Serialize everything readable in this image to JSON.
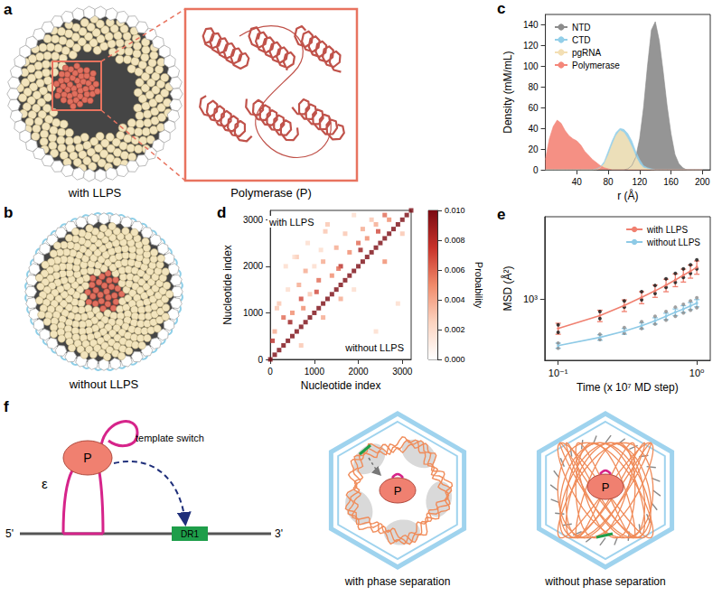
{
  "panels": {
    "a": {
      "label": "a",
      "caption": "with LLPS",
      "inset_title": "Polymerase (P)"
    },
    "b": {
      "label": "b",
      "caption": "without LLPS"
    },
    "f": {
      "label": "f",
      "p_label": "P",
      "epsilon_label": "ε",
      "arrow_label": "template switch",
      "five_prime": "5'",
      "three_prime": "3'",
      "motif_label": "DR1",
      "left_caption": "with phase separation",
      "right_caption": "without phase separation"
    }
  },
  "chart_data": [
    {
      "panel_label": "c",
      "type": "area",
      "xlabel": "r (Å)",
      "ylabel": "Density (mM/mL)",
      "x": [
        0,
        5,
        10,
        15,
        20,
        25,
        30,
        35,
        40,
        45,
        50,
        55,
        60,
        65,
        70,
        75,
        80,
        85,
        90,
        95,
        100,
        105,
        110,
        115,
        120,
        125,
        130,
        135,
        140,
        145,
        150,
        155,
        160,
        165,
        170,
        175,
        180,
        185,
        190,
        195,
        200
      ],
      "series": [
        {
          "name": "NTD",
          "color": "#8c8c8c",
          "values": [
            0,
            0,
            0,
            0,
            0,
            0,
            0,
            0,
            0,
            0,
            0,
            0,
            0,
            0,
            0,
            0,
            0,
            0,
            0,
            0,
            0,
            1,
            4,
            12,
            30,
            60,
            100,
            135,
            143,
            125,
            95,
            62,
            35,
            15,
            6,
            2,
            0,
            0,
            0,
            0,
            0
          ]
        },
        {
          "name": "CTD",
          "color": "#93cfe9",
          "values": [
            0,
            0,
            0,
            0,
            0,
            0,
            0,
            0,
            0,
            0,
            0,
            0,
            0,
            1,
            3,
            8,
            18,
            28,
            36,
            40,
            39,
            35,
            28,
            18,
            10,
            4,
            2,
            1,
            0,
            0,
            0,
            0,
            0,
            0,
            0,
            0,
            0,
            0,
            0,
            0,
            0
          ]
        },
        {
          "name": "pgRNA",
          "color": "#f3dfb4",
          "values": [
            0,
            0,
            0,
            0,
            0,
            0,
            0,
            0,
            0,
            0,
            0,
            0,
            0,
            0,
            2,
            6,
            14,
            24,
            33,
            38,
            36,
            30,
            22,
            13,
            6,
            2,
            1,
            0,
            0,
            0,
            0,
            0,
            0,
            0,
            0,
            0,
            0,
            0,
            0,
            0,
            0
          ]
        },
        {
          "name": "Polymerase",
          "color": "#f4877a",
          "values": [
            10,
            30,
            42,
            48,
            45,
            38,
            33,
            30,
            28,
            24,
            18,
            14,
            10,
            7,
            4,
            2,
            1,
            0,
            0,
            0,
            0,
            0,
            0,
            0,
            0,
            0,
            0,
            0,
            0,
            0,
            0,
            0,
            0,
            0,
            0,
            0,
            0,
            0,
            0,
            0,
            0
          ]
        }
      ],
      "xlim": [
        0,
        210
      ],
      "xticks": [
        40,
        80,
        120,
        160,
        200
      ],
      "ylim": [
        0,
        150
      ],
      "yticks": [
        0,
        20,
        40,
        60,
        80,
        100,
        120,
        140
      ],
      "legend": "top-left",
      "grid": false
    },
    {
      "panel_label": "d",
      "type": "heatmap",
      "xlabel": "Nucleotide index",
      "ylabel": "Nucleotide index",
      "annotations": [
        "with LLPS",
        "without LLPS"
      ],
      "cells": [
        [
          0,
          0,
          0.01
        ],
        [
          100,
          100,
          0.01
        ],
        [
          200,
          200,
          0.01
        ],
        [
          300,
          300,
          0.01
        ],
        [
          400,
          400,
          0.01
        ],
        [
          500,
          500,
          0.01
        ],
        [
          600,
          600,
          0.01
        ],
        [
          700,
          700,
          0.01
        ],
        [
          800,
          800,
          0.01
        ],
        [
          900,
          900,
          0.01
        ],
        [
          1000,
          1000,
          0.01
        ],
        [
          1100,
          1100,
          0.01
        ],
        [
          1200,
          1200,
          0.01
        ],
        [
          1300,
          1300,
          0.01
        ],
        [
          1400,
          1400,
          0.01
        ],
        [
          1500,
          1500,
          0.01
        ],
        [
          1600,
          1600,
          0.01
        ],
        [
          1700,
          1700,
          0.01
        ],
        [
          1800,
          1800,
          0.01
        ],
        [
          1900,
          1900,
          0.01
        ],
        [
          2000,
          2000,
          0.01
        ],
        [
          2100,
          2100,
          0.01
        ],
        [
          2200,
          2200,
          0.01
        ],
        [
          2300,
          2300,
          0.01
        ],
        [
          2400,
          2400,
          0.01
        ],
        [
          2500,
          2500,
          0.01
        ],
        [
          2600,
          2600,
          0.01
        ],
        [
          2700,
          2700,
          0.01
        ],
        [
          2800,
          2800,
          0.01
        ],
        [
          2900,
          2900,
          0.01
        ],
        [
          3000,
          3000,
          0.01
        ],
        [
          3100,
          3100,
          0.01
        ],
        [
          3200,
          3200,
          0.01
        ],
        [
          100,
          600,
          0.004
        ],
        [
          200,
          1200,
          0.003
        ],
        [
          300,
          900,
          0.006
        ],
        [
          400,
          1500,
          0.002
        ],
        [
          500,
          1000,
          0.005
        ],
        [
          600,
          2200,
          0.003
        ],
        [
          700,
          1300,
          0.007
        ],
        [
          800,
          1900,
          0.004
        ],
        [
          900,
          1400,
          0.003
        ],
        [
          1000,
          2000,
          0.002
        ],
        [
          1100,
          1700,
          0.006
        ],
        [
          1200,
          2100,
          0.004
        ],
        [
          1300,
          2900,
          0.003
        ],
        [
          1400,
          1800,
          0.005
        ],
        [
          1500,
          2400,
          0.004
        ],
        [
          1600,
          2000,
          0.008
        ],
        [
          1700,
          2700,
          0.003
        ],
        [
          1800,
          2300,
          0.005
        ],
        [
          1900,
          3100,
          0.002
        ],
        [
          2000,
          2500,
          0.006
        ],
        [
          2100,
          2800,
          0.004
        ],
        [
          2200,
          2600,
          0.005
        ],
        [
          2300,
          3000,
          0.003
        ],
        [
          2400,
          2900,
          0.004
        ],
        [
          2600,
          3100,
          0.006
        ],
        [
          2700,
          3000,
          0.005
        ],
        [
          150,
          1100,
          0.003
        ],
        [
          350,
          2000,
          0.002
        ],
        [
          450,
          800,
          0.009
        ],
        [
          650,
          1600,
          0.004
        ],
        [
          850,
          2500,
          0.002
        ],
        [
          1050,
          1450,
          0.007
        ],
        [
          1250,
          2750,
          0.003
        ],
        [
          50,
          400,
          0.008
        ],
        [
          1550,
          1950,
          0.006
        ],
        [
          2050,
          2350,
          0.009
        ],
        [
          550,
          2200,
          0.002
        ],
        [
          750,
          1100,
          0.005
        ],
        [
          2450,
          2750,
          0.007
        ],
        [
          1150,
          2350,
          0.002
        ],
        [
          700,
          300,
          0.003
        ],
        [
          1200,
          900,
          0.004
        ],
        [
          1900,
          1500,
          0.002
        ],
        [
          2600,
          2100,
          0.005
        ],
        [
          3000,
          2700,
          0.003
        ],
        [
          2400,
          600,
          0.002
        ],
        [
          1600,
          1300,
          0.004
        ],
        [
          2900,
          1200,
          0.002
        ]
      ],
      "xlim": [
        0,
        3200
      ],
      "xticks": [
        0,
        1000,
        2000,
        3000
      ],
      "ylim": [
        0,
        3200
      ],
      "yticks": [
        0,
        1000,
        2000,
        3000
      ],
      "colorbar": {
        "title": "Probability",
        "range": [
          0,
          0.01
        ],
        "ticks": [
          {
            "value": 0,
            "label": "0.000"
          },
          {
            "value": 0.002,
            "label": "0.002"
          },
          {
            "value": 0.004,
            "label": "0.004"
          },
          {
            "value": 0.006,
            "label": "0.006"
          },
          {
            "value": 0.008,
            "label": "0.008"
          },
          {
            "value": 0.01,
            "label": "0.010"
          }
        ]
      }
    },
    {
      "panel_label": "e",
      "type": "line",
      "xlabel": "Time (x 10⁷ MD step)",
      "ylabel": "MSD (Å²)",
      "log": true,
      "x": [
        0.1,
        0.2,
        0.3,
        0.4,
        0.5,
        0.6,
        0.7,
        0.8,
        0.9,
        1.0
      ],
      "series": [
        {
          "name": "with LLPS",
          "color": "#f08070",
          "marker": "circle",
          "line_style": "solid",
          "values": [
            560,
            720,
            880,
            1030,
            1170,
            1310,
            1450,
            1590,
            1720,
            1860
          ],
          "errors": [
            60,
            80,
            100,
            120,
            140,
            160,
            180,
            200,
            220,
            240
          ],
          "replicates": [
            [
              600,
              780,
              960,
              1150,
              1300,
              1480,
              1650,
              1800,
              1950,
              2150
            ],
            [
              520,
              680,
              850,
              980,
              1110,
              1250,
              1380,
              1520,
              1650,
              1800
            ]
          ]
        },
        {
          "name": "without LLPS",
          "color": "#8ecae6",
          "marker": "circle",
          "line_style": "solid",
          "values": [
            400,
            470,
            530,
            590,
            650,
            710,
            770,
            820,
            870,
            920
          ],
          "errors": [
            20,
            25,
            30,
            35,
            40,
            45,
            50,
            55,
            60,
            65
          ],
          "replicates": [
            [
              420,
              500,
              570,
              640,
              710,
              780,
              850,
              900,
              960,
              1020
            ],
            [
              380,
              450,
              510,
              560,
              610,
              660,
              710,
              760,
              800,
              840
            ]
          ]
        }
      ],
      "xlim": [
        0.08,
        1.25
      ],
      "xticks": [
        {
          "value": 0.1,
          "label": "10⁻¹"
        },
        {
          "value": 1,
          "label": "10⁰"
        }
      ],
      "ylim": [
        300,
        5000
      ],
      "yticks": [
        {
          "value": 1000,
          "label": "10³"
        }
      ],
      "legend": "top-right"
    }
  ]
}
